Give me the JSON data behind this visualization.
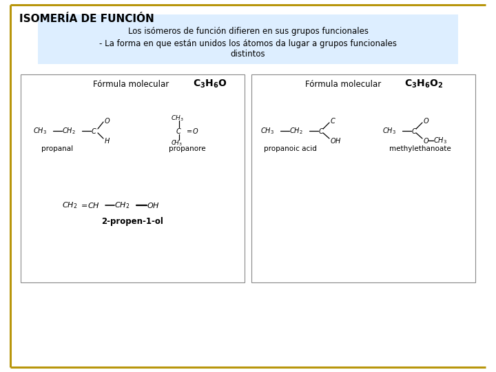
{
  "title": "ISOMERÍA DE FUNCIÓN",
  "bg_color": "#ffffff",
  "title_color": "#000000",
  "title_fontsize": 11,
  "border_color": "#b8960c",
  "info_box_color": "#ddeeff",
  "info_text_line1": "Los isómeros de función difieren en sus grupos funcionales",
  "info_text_line2": "- La forma en que están unidos los átomos da lugar a grupos funcionales",
  "info_text_line3": "distintos",
  "compound1_name": "propanal",
  "compound2_name": "propanore",
  "compound3_name": "2-propen-1-ol",
  "compound4_name": "propanoic acid",
  "compound5_name": "methylethanoate"
}
